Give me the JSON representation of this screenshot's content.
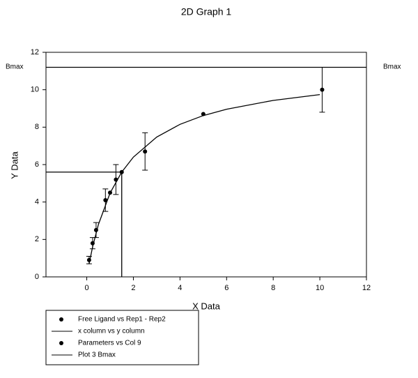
{
  "chart_data": {
    "type": "scatter",
    "title": "2D Graph 1",
    "x_label": "X Data",
    "y_label": "Y Data",
    "xlim": [
      -1.75,
      12
    ],
    "xticks": [
      0,
      2,
      4,
      6,
      8,
      10,
      12
    ],
    "ylim": [
      0,
      12
    ],
    "yticks": [
      0,
      2,
      4,
      6,
      8,
      10,
      12
    ],
    "annotations": [
      "Bmax",
      "Bmax"
    ],
    "series": [
      {
        "name": "Free Ligand vs Rep1 - Rep2",
        "color": "#000000",
        "mode": "markers",
        "x": [
          0.1,
          0.25,
          0.4,
          0.8,
          1.0,
          1.25,
          2.5,
          5.0,
          10.1
        ],
        "values": [
          0.9,
          1.8,
          2.5,
          4.1,
          4.5,
          5.2,
          6.7,
          8.7,
          10.0
        ],
        "errors": [
          0.2,
          0.3,
          0.4,
          0.6,
          null,
          0.8,
          1.0,
          null,
          1.2
        ]
      },
      {
        "name": "x column vs y column",
        "color": "#000000",
        "mode": "line",
        "x": [
          0.1,
          0.25,
          0.5,
          1,
          1.5,
          2,
          3,
          4,
          5,
          6,
          8,
          10
        ],
        "values": [
          0.7,
          1.6,
          2.8,
          4.48,
          5.6,
          6.4,
          7.47,
          8.15,
          8.62,
          8.96,
          9.43,
          9.74
        ]
      },
      {
        "name": "Parameters vs Col 9",
        "color": "#000000",
        "mode": "drop",
        "x": [
          1.5
        ],
        "values": [
          5.6
        ]
      },
      {
        "name": "Plot 3 Bmax",
        "color": "#000000",
        "mode": "hline",
        "values": [
          11.2
        ]
      }
    ]
  }
}
